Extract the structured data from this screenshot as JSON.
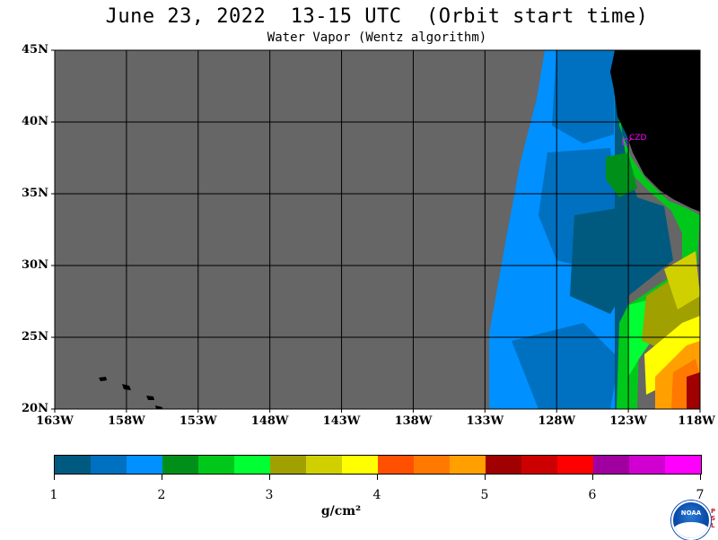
{
  "title": "June 23, 2022  13-15 UTC  (Orbit start time)",
  "subtitle": "Water Vapor (Wentz algorithm)",
  "map": {
    "lat_labels": [
      "45N",
      "40N",
      "35N",
      "30N",
      "25N",
      "20N"
    ],
    "lon_labels": [
      "163W",
      "158W",
      "153W",
      "148W",
      "143W",
      "138W",
      "133W",
      "128W",
      "123W",
      "118W"
    ],
    "station_label": "CZD",
    "colors": {
      "no_data": "#666666",
      "land": "#000000",
      "grid": "#000000",
      "station": "#ff00ff"
    }
  },
  "colorbar": {
    "colors": [
      "#005a80",
      "#0070c0",
      "#0090ff",
      "#00901a",
      "#00c81a",
      "#00ff33",
      "#a0a000",
      "#d0d000",
      "#ffff00",
      "#ff5000",
      "#ff7800",
      "#ffa000",
      "#a00000",
      "#cc0000",
      "#ff0000",
      "#a000a0",
      "#d000d0",
      "#ff00ff"
    ],
    "tick_labels": [
      "1",
      "2",
      "3",
      "4",
      "5",
      "6",
      "7"
    ],
    "units": "g/cm²"
  },
  "logo": {
    "text": "NOAA",
    "side_text": "PSL"
  }
}
